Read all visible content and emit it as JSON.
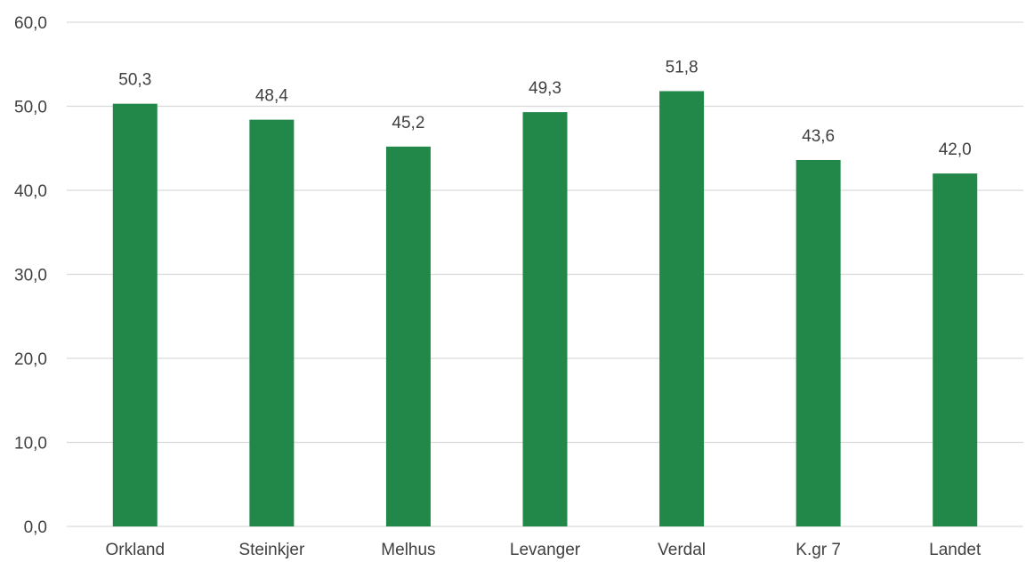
{
  "chart_data": {
    "type": "bar",
    "categories": [
      "Orkland",
      "Steinkjer",
      "Melhus",
      "Levanger",
      "Verdal",
      "K.gr 7",
      "Landet"
    ],
    "values": [
      50.3,
      48.4,
      45.2,
      49.3,
      51.8,
      43.6,
      42.0
    ],
    "value_labels": [
      "50,3",
      "48,4",
      "45,2",
      "49,3",
      "51,8",
      "43,6",
      "42,0"
    ],
    "title": "",
    "xlabel": "",
    "ylabel": "",
    "ylim": [
      0,
      60
    ],
    "yticks": [
      0,
      10,
      20,
      30,
      40,
      50,
      60
    ],
    "ytick_labels": [
      "0,0",
      "10,0",
      "20,0",
      "30,0",
      "40,0",
      "50,0",
      "60,0"
    ],
    "grid": true,
    "legend": "none",
    "bar_color": "#22884a",
    "grid_color": "#d9d9d9",
    "text_color": "#404040"
  }
}
